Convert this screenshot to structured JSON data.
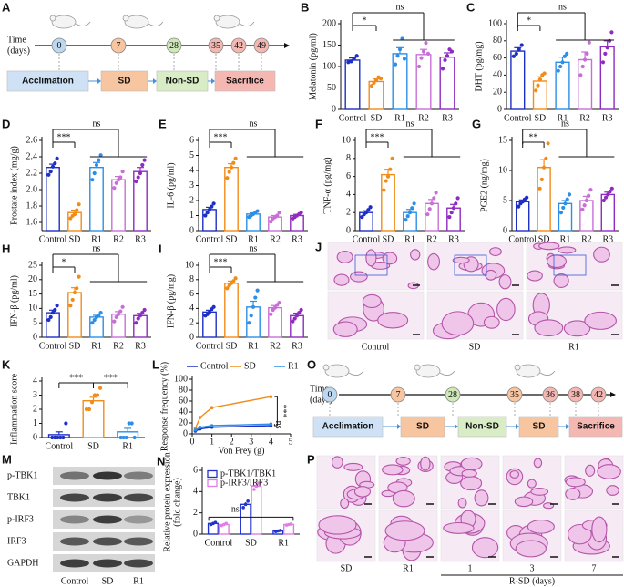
{
  "chart_data": [
    {
      "type": "bar",
      "label": "B",
      "ylabel": "Melatonin (pg/ml)",
      "categories": [
        "Control",
        "SD",
        "R1",
        "R2",
        "R3"
      ],
      "colors": [
        "#1d2fc4",
        "#f28c18",
        "#2e8ee6",
        "#c86fd6",
        "#8e2bc1"
      ],
      "values": [
        115,
        65,
        130,
        128,
        122
      ],
      "errors": [
        5,
        6,
        14,
        12,
        10
      ],
      "points": [
        [
          110,
          112,
          118,
          125
        ],
        [
          55,
          62,
          68,
          75,
          72
        ],
        [
          105,
          125,
          140,
          165,
          118
        ],
        [
          100,
          120,
          135,
          155,
          130
        ],
        [
          95,
          115,
          125,
          140,
          135
        ]
      ],
      "ylim": [
        0,
        200
      ],
      "yticks": [
        0,
        50,
        100,
        150,
        200
      ],
      "sig": {
        "pair": "*",
        "rest": "ns"
      }
    },
    {
      "type": "bar",
      "label": "C",
      "ylabel": "DHT (pg/mg)",
      "categories": [
        "Control",
        "SD",
        "R1",
        "R2",
        "R3"
      ],
      "colors": [
        "#1d2fc4",
        "#f28c18",
        "#2e8ee6",
        "#c86fd6",
        "#8e2bc1"
      ],
      "values": [
        68,
        33,
        55,
        58,
        73
      ],
      "errors": [
        4,
        5,
        6,
        9,
        7
      ],
      "points": [
        [
          62,
          65,
          70,
          75
        ],
        [
          22,
          28,
          35,
          40,
          42
        ],
        [
          45,
          50,
          55,
          62,
          65
        ],
        [
          40,
          50,
          58,
          65,
          78
        ],
        [
          55,
          65,
          72,
          80,
          90
        ]
      ],
      "ylim": [
        0,
        100
      ],
      "yticks": [
        0,
        20,
        40,
        60,
        80,
        100
      ],
      "sig": {
        "pair": "*",
        "rest": "ns"
      }
    },
    {
      "type": "bar",
      "label": "D",
      "ylabel": "Prostate index (mg/g)",
      "categories": [
        "Control",
        "SD",
        "R1",
        "R2",
        "R3"
      ],
      "colors": [
        "#1d2fc4",
        "#f28c18",
        "#2e8ee6",
        "#c86fd6",
        "#8e2bc1"
      ],
      "values": [
        2.27,
        1.72,
        2.27,
        2.12,
        2.22
      ],
      "errors": [
        0.04,
        0.03,
        0.06,
        0.04,
        0.05
      ],
      "points": [
        [
          2.18,
          2.22,
          2.28,
          2.32,
          2.38
        ],
        [
          1.65,
          1.68,
          1.7,
          1.75,
          1.82
        ],
        [
          2.12,
          2.2,
          2.3,
          2.36,
          2.42
        ],
        [
          2.02,
          2.08,
          2.12,
          2.15,
          2.22
        ],
        [
          2.1,
          2.15,
          2.2,
          2.3,
          2.36
        ]
      ],
      "ylim": [
        1.5,
        2.6
      ],
      "yticks": [
        1.6,
        1.8,
        {
          "value": 2,
          "label": "2.0"
        },
        2.2,
        2.4,
        2.6
      ],
      "sig": {
        "pair": "***",
        "rest": "ns"
      }
    },
    {
      "type": "bar",
      "label": "E",
      "ylabel": "IL-6 (pg/ml)",
      "categories": [
        "Control",
        "SD",
        "R1",
        "R2",
        "R3"
      ],
      "colors": [
        "#1d2fc4",
        "#f28c18",
        "#2e8ee6",
        "#c86fd6",
        "#8e2bc1"
      ],
      "values": [
        1.4,
        4.2,
        1.1,
        0.9,
        1.0
      ],
      "errors": [
        0.15,
        0.25,
        0.08,
        0.1,
        0.08
      ],
      "points": [
        [
          1.0,
          1.2,
          1.4,
          1.6,
          1.8
        ],
        [
          3.5,
          3.9,
          4.2,
          4.5,
          4.8
        ],
        [
          0.9,
          1.0,
          1.1,
          1.2,
          1.3
        ],
        [
          0.6,
          0.8,
          0.9,
          1.0,
          1.2
        ],
        [
          0.8,
          0.9,
          1.0,
          1.1,
          1.2
        ]
      ],
      "ylim": [
        0,
        6
      ],
      "yticks": [
        0,
        1,
        2,
        3,
        4,
        5,
        6
      ],
      "sig": {
        "pair": "***",
        "rest": "ns"
      }
    },
    {
      "type": "bar",
      "label": "F",
      "ylabel": "TNF-α (pg/mg)",
      "categories": [
        "Control",
        "SD",
        "R1",
        "R2",
        "R3"
      ],
      "colors": [
        "#1d2fc4",
        "#f28c18",
        "#2e8ee6",
        "#c86fd6",
        "#8e2bc1"
      ],
      "values": [
        2.0,
        6.2,
        2.0,
        3.0,
        2.5
      ],
      "errors": [
        0.2,
        0.6,
        0.35,
        0.45,
        0.4
      ],
      "points": [
        [
          1.5,
          1.8,
          2.0,
          2.3,
          2.6
        ],
        [
          4.5,
          5.5,
          6.0,
          6.8,
          8.0
        ],
        [
          1.2,
          1.6,
          2.0,
          2.5,
          3.0
        ],
        [
          1.8,
          2.4,
          3.0,
          3.6,
          4.2
        ],
        [
          1.5,
          2.0,
          2.5,
          3.0,
          3.6
        ]
      ],
      "ylim": [
        0,
        10
      ],
      "yticks": [
        0,
        2,
        4,
        6,
        8,
        10
      ],
      "sig": {
        "pair": "***",
        "rest": "ns"
      }
    },
    {
      "type": "bar",
      "label": "G",
      "ylabel": "PGE2 (ng/mg)",
      "categories": [
        "Control",
        "SD",
        "R1",
        "R2",
        "R3"
      ],
      "colors": [
        "#1d2fc4",
        "#f28c18",
        "#2e8ee6",
        "#c86fd6",
        "#8e2bc1"
      ],
      "values": [
        4.8,
        10.5,
        4.5,
        5.0,
        6.0
      ],
      "errors": [
        0.3,
        1.3,
        0.5,
        0.7,
        0.4
      ],
      "points": [
        [
          4,
          4.5,
          4.8,
          5.2,
          5.5
        ],
        [
          7,
          8.5,
          10.5,
          12,
          14.5
        ],
        [
          3,
          3.8,
          4.5,
          5.2,
          6
        ],
        [
          3.5,
          4.2,
          5,
          5.8,
          6.8
        ],
        [
          5,
          5.5,
          6,
          6.5,
          7
        ]
      ],
      "ylim": [
        0,
        15
      ],
      "yticks": [
        0,
        5,
        10,
        15
      ],
      "sig": {
        "pair": "**",
        "rest": "ns"
      }
    },
    {
      "type": "bar",
      "label": "H",
      "ylabel": "IFN-β (pg/ml)",
      "categories": [
        "Control",
        "SD",
        "R1",
        "R2",
        "R3"
      ],
      "colors": [
        "#1d2fc4",
        "#f28c18",
        "#2e8ee6",
        "#c86fd6",
        "#8e2bc1"
      ],
      "values": [
        8.5,
        15.5,
        7,
        8,
        7.5
      ],
      "errors": [
        0.9,
        1.7,
        0.6,
        0.9,
        0.8
      ],
      "points": [
        [
          6,
          7,
          8.5,
          9.5,
          11
        ],
        [
          11,
          13,
          15.5,
          17,
          21
        ],
        [
          5,
          6,
          7,
          7.5,
          8.5
        ],
        [
          5.5,
          7,
          8,
          9,
          10.5
        ],
        [
          5,
          6.5,
          7.5,
          8.5,
          9.5
        ]
      ],
      "ylim": [
        0,
        25
      ],
      "yticks": [
        0,
        5,
        10,
        15,
        20,
        25
      ],
      "sig": {
        "pair": "*",
        "rest": "ns"
      }
    },
    {
      "type": "bar",
      "label": "I",
      "ylabel": "IFN-β (pg/mg)",
      "categories": [
        "Control",
        "SD",
        "R1",
        "R2",
        "R3"
      ],
      "colors": [
        "#1d2fc4",
        "#f28c18",
        "#2e8ee6",
        "#c86fd6",
        "#8e2bc1"
      ],
      "values": [
        3.5,
        7.5,
        4.2,
        4.1,
        3.0
      ],
      "errors": [
        0.25,
        0.3,
        0.8,
        0.3,
        0.35
      ],
      "points": [
        [
          3,
          3.2,
          3.5,
          3.9,
          4.2
        ],
        [
          6.8,
          7.2,
          7.5,
          7.8,
          8.2
        ],
        [
          2,
          3,
          4.2,
          5.5,
          6.5
        ],
        [
          3.2,
          3.8,
          4.1,
          4.5,
          4.8
        ],
        [
          2.2,
          2.6,
          3,
          3.4,
          3.8
        ]
      ],
      "ylim": [
        0,
        10
      ],
      "yticks": [
        0,
        2,
        4,
        6,
        8,
        10
      ],
      "sig": {
        "pair": "***",
        "rest": "ns"
      }
    },
    {
      "type": "bar",
      "label": "K",
      "ylabel": "Inflammation score",
      "categories": [
        "Control",
        "SD",
        "R1"
      ],
      "colors": [
        "#1d2fc4",
        "#f28c18",
        "#2e8ee6"
      ],
      "values": [
        0.2,
        2.6,
        0.4
      ],
      "errors": [
        0.2,
        0.25,
        0.25
      ],
      "points": [
        [
          0,
          0,
          0,
          0,
          0,
          1
        ],
        [
          2,
          2,
          2.5,
          3,
          3,
          3.5
        ],
        [
          0,
          0,
          0,
          1,
          1,
          0
        ]
      ],
      "ylim": [
        0,
        4
      ],
      "yticks": [
        0,
        1,
        2,
        3,
        4
      ],
      "sig": {
        "pair": "***",
        "pair2": "***"
      }
    },
    {
      "type": "line",
      "label": "L",
      "xlabel": "Von Frey (g)",
      "ylabel": "Response frequency (%)",
      "x": [
        0.16,
        0.4,
        1,
        4
      ],
      "series": [
        {
          "name": "Control",
          "color": "#1d2fc4",
          "values": [
            5,
            9,
            12,
            15
          ],
          "errors": [
            1,
            1.5,
            2,
            2
          ]
        },
        {
          "name": "SD",
          "color": "#f28c18",
          "values": [
            10,
            30,
            48,
            68
          ],
          "errors": [
            1.5,
            2.5,
            3,
            4
          ]
        },
        {
          "name": "R1",
          "color": "#2e8ee6",
          "values": [
            7,
            12,
            15,
            18
          ],
          "errors": [
            1,
            1.5,
            2,
            2.5
          ]
        }
      ],
      "xlim": [
        0,
        5
      ],
      "xticks": [
        0,
        1,
        2,
        3,
        4,
        5
      ],
      "ylim": [
        0,
        100
      ],
      "yticks": [
        0,
        20,
        40,
        60,
        80,
        100
      ],
      "sig": {
        "top": "***",
        "bottom": "ns"
      }
    },
    {
      "type": "grouped_bar",
      "label": "N",
      "ylabel": [
        "Relative protein expression",
        "(fold change)"
      ],
      "categories": [
        "Control",
        "SD",
        "R1"
      ],
      "series": [
        {
          "name": "p-TBK1/TBK1",
          "color": "#2233cc",
          "values": [
            1.0,
            2.8,
            0.3
          ],
          "errors": [
            0.05,
            0.2,
            0.03
          ],
          "points": [
            [
              0.9,
              1.0,
              1.1
            ],
            [
              2.5,
              2.8,
              3.1
            ],
            [
              0.25,
              0.3,
              0.35
            ]
          ]
        },
        {
          "name": "p-IRF3/IRF3",
          "color": "#e27de5",
          "values": [
            0.9,
            4.5,
            0.9
          ],
          "errors": [
            0.06,
            0.2,
            0.03
          ],
          "points": [
            [
              0.8,
              0.9,
              1.0
            ],
            [
              4.2,
              4.5,
              4.8
            ],
            [
              0.85,
              0.9,
              0.95
            ]
          ]
        }
      ],
      "ylim": [
        0,
        6
      ],
      "yticks": [
        0,
        2,
        4,
        6
      ],
      "sig": {
        "rest": "ns"
      }
    }
  ],
  "timeline_a": {
    "label": "A",
    "axis_label": [
      "Time",
      "(days)"
    ],
    "days": [
      0,
      7,
      28,
      35,
      42,
      49
    ],
    "day_colors": [
      "#bcd7f0",
      "#f7c59f",
      "#cfe8b8",
      "#f5b7b1",
      "#f5b7b1",
      "#f5b7b1"
    ],
    "stages": [
      "Acclimation",
      "SD",
      "Non-SD",
      "Sacrifice"
    ],
    "stage_colors": [
      "#cfe2f5",
      "#f7c59f",
      "#d8edc5",
      "#f5b7b1"
    ]
  },
  "timeline_o": {
    "label": "O",
    "axis_label": [
      "Time",
      "(days)"
    ],
    "days": [
      0,
      7,
      28,
      35,
      36,
      38,
      42
    ],
    "day_colors": [
      "#bcd7f0",
      "#f7c59f",
      "#cfe8b8",
      "#f7c59f",
      "#f5b7b1",
      "#f5b7b1",
      "#f5b7b1"
    ],
    "stages": [
      "Acclimation",
      "SD",
      "Non-SD",
      "SD",
      "Sacrifice"
    ],
    "stage_colors": [
      "#cfe2f5",
      "#f7c59f",
      "#d8edc5",
      "#f7c59f",
      "#f5b7b1"
    ]
  },
  "histology_j": {
    "label": "J",
    "columns": [
      "Control",
      "SD",
      "R1"
    ]
  },
  "blot_m": {
    "label": "M",
    "rows": [
      "p-TBK1",
      "TBK1",
      "p-IRF3",
      "IRF3",
      "GAPDH"
    ],
    "columns": [
      "Control",
      "SD",
      "R1"
    ]
  },
  "histology_p": {
    "label": "P",
    "columns": [
      "SD",
      "R1",
      "1",
      "3",
      "7"
    ],
    "group_label": "R-SD (days)"
  }
}
